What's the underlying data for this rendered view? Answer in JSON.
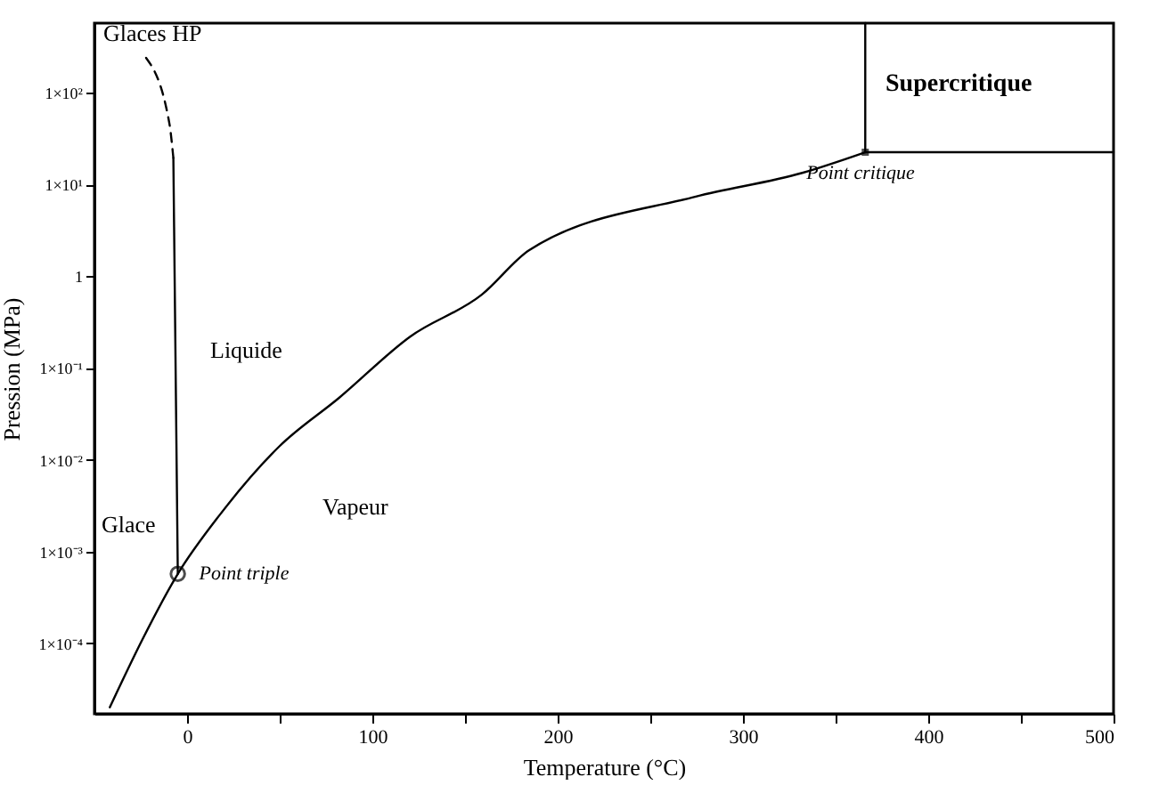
{
  "chart_data": {
    "type": "line",
    "xlabel": "Temperature (°C)",
    "ylabel": "Pression (MPa)",
    "xlim": [
      -50,
      500
    ],
    "ylim": [
      1.7e-05,
      575
    ],
    "log": "y",
    "grid": false,
    "xticks": [
      0,
      {
        "value": 50,
        "label": null
      },
      100,
      {
        "value": 150,
        "label": null
      },
      200,
      {
        "value": 250,
        "label": null
      },
      300,
      {
        "value": 350,
        "label": null
      },
      400,
      {
        "value": 450,
        "label": null
      },
      500
    ],
    "yticks": [
      {
        "value": 0.0001,
        "label": "1×10⁻⁴"
      },
      {
        "value": 0.001,
        "label": "1×10⁻³"
      },
      {
        "value": 0.01,
        "label": "1×10⁻²"
      },
      {
        "value": 0.1,
        "label": "1×10⁻¹"
      },
      1,
      {
        "value": 10,
        "label": "1×10¹"
      },
      {
        "value": 100,
        "label": "1×10²"
      }
    ],
    "series": [
      {
        "color": "#000000",
        "x": [
          -41.7,
          -24.1,
          -5,
          17.6,
          49.8,
          81.9,
          120.4,
          159,
          184.7,
          274.6,
          332,
          366
        ],
        "values": [
          2e-05,
          0.00011,
          0.00057,
          0.0025,
          0.014,
          0.047,
          0.22,
          0.63,
          1.93,
          7.4,
          13.4,
          22.5
        ]
      },
      {
        "color": "#000000",
        "x": [
          -5,
          -7.4
        ],
        "values": [
          0.00057,
          19.5
        ]
      },
      {
        "color": "#000000",
        "line_style": "dashed",
        "x": [
          -7.4,
          -9.6,
          -22.4
        ],
        "values": [
          19.5,
          47,
          245
        ]
      },
      {
        "color": "#000000",
        "x": [
          366,
          366,
          500
        ],
        "values": [
          575,
          22.5,
          22.5
        ]
      },
      {
        "type": "scatter",
        "color": "#000000",
        "marker": "circle",
        "x": [
          -5
        ],
        "values": [
          0.00057
        ]
      },
      {
        "type": "scatter",
        "color": "#000000",
        "marker": "square",
        "x": [
          366
        ],
        "values": [
          22.5
        ]
      }
    ],
    "annotations": [
      "Glaces HP",
      "Liquide",
      "Glace",
      "Vapeur",
      {
        "text": "Point triple",
        "x": -5,
        "y": 0.00057
      },
      {
        "text": "Point critique",
        "x": 366,
        "y": 22.5
      },
      "Supercritique"
    ]
  }
}
